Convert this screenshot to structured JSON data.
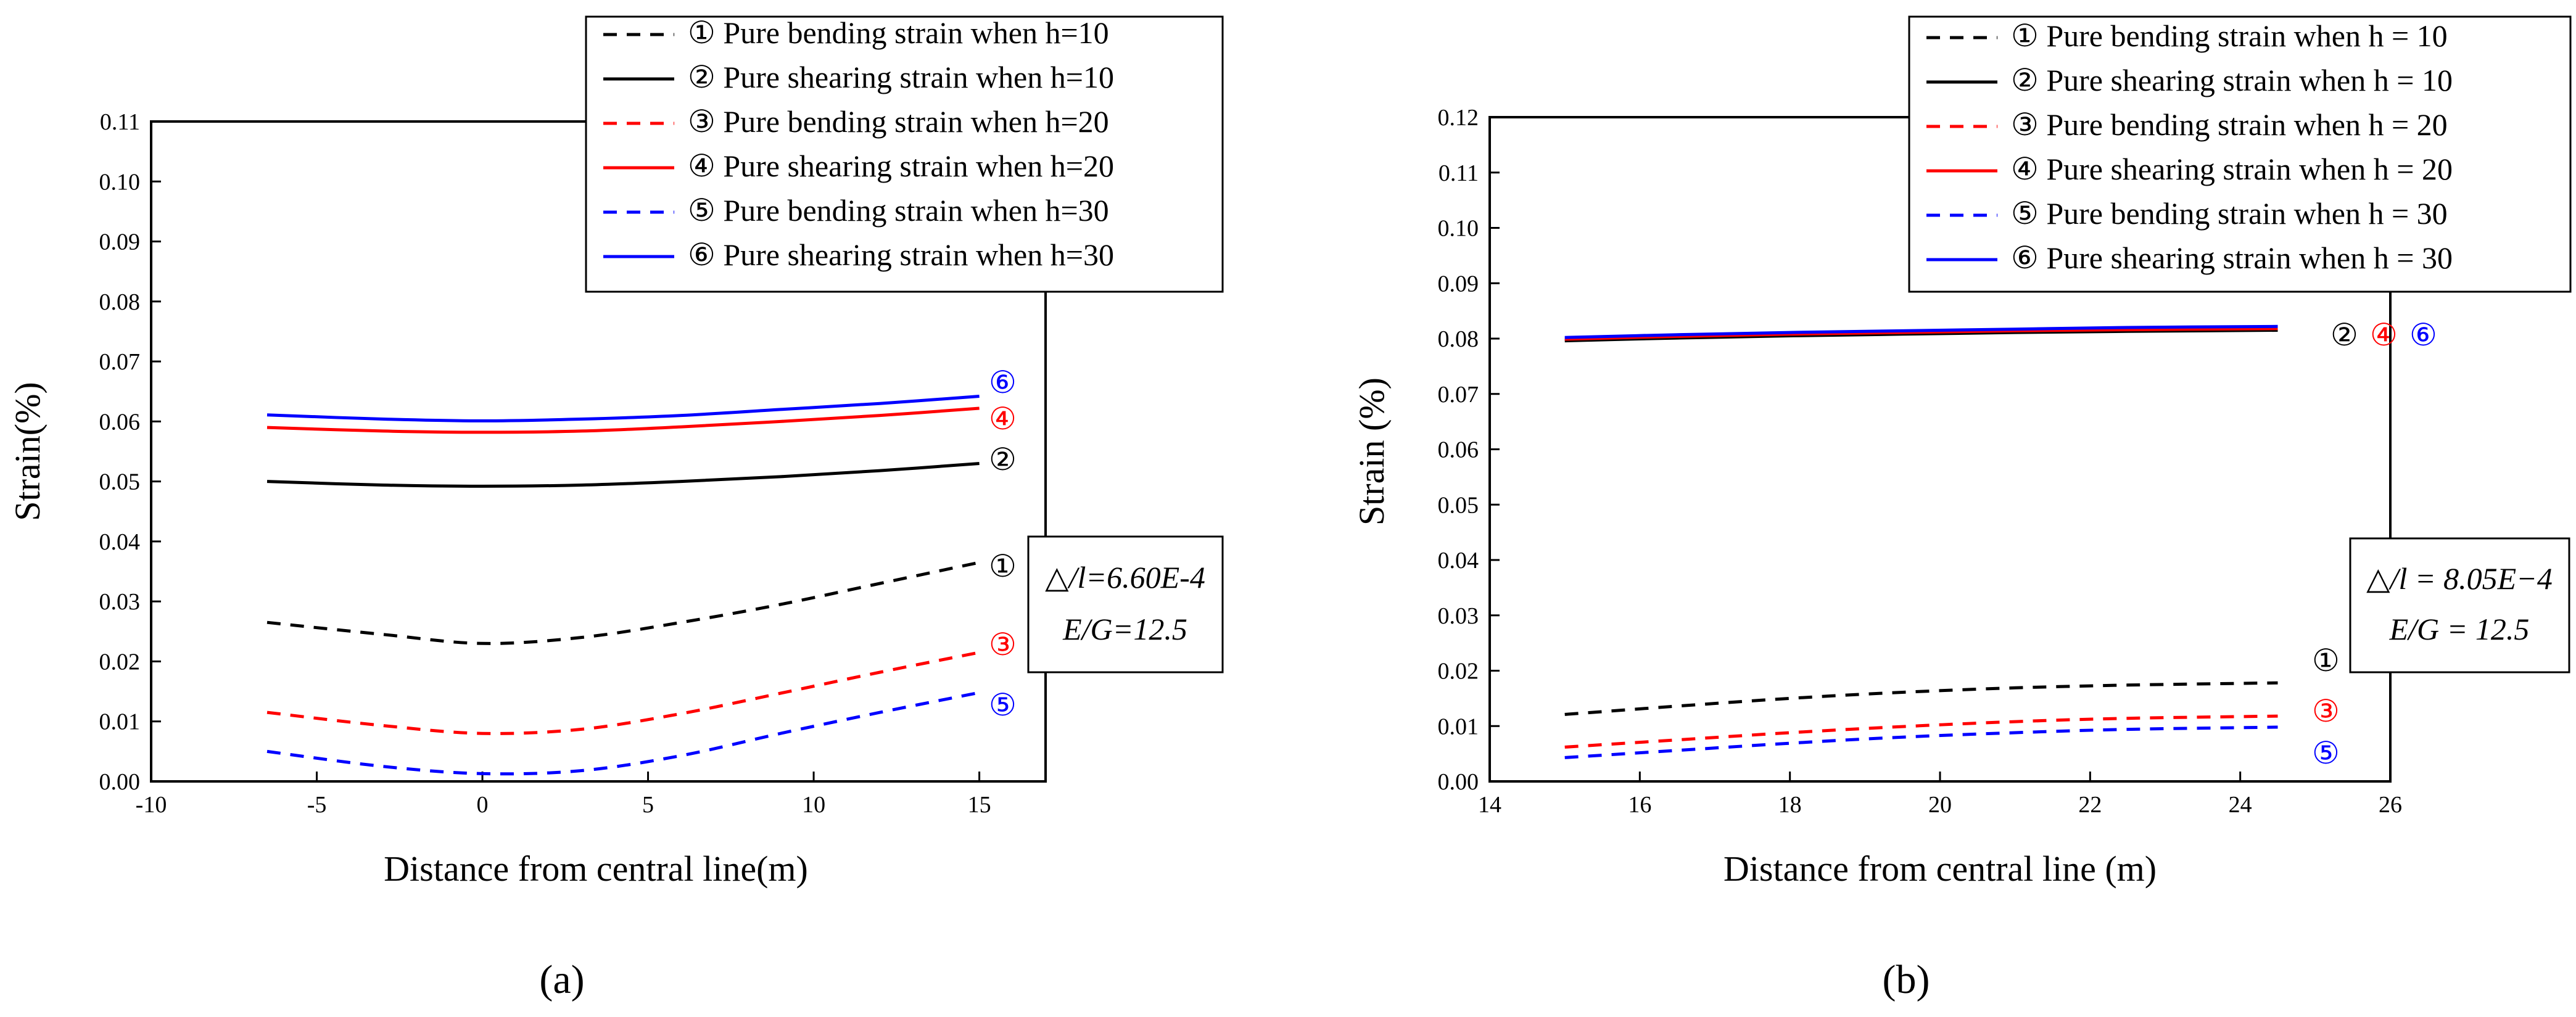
{
  "chart_data": [
    {
      "type": "line",
      "panel_label": "(a)",
      "xlabel": "Distance from central line(m)",
      "ylabel": "Strain(%)",
      "xlim": [
        -10,
        17
      ],
      "ylim": [
        0,
        0.11
      ],
      "xticks": [
        -10,
        -5,
        0,
        5,
        10,
        15
      ],
      "xtick_labels": [
        "-10",
        "-5",
        "0",
        "5",
        "10",
        "15"
      ],
      "yticks": [
        0,
        0.01,
        0.02,
        0.03,
        0.04,
        0.05,
        0.06,
        0.07,
        0.08,
        0.09,
        0.1,
        0.11
      ],
      "ytick_labels": [
        "0.00",
        "0.01",
        "0.02",
        "0.03",
        "0.04",
        "0.05",
        "0.06",
        "0.07",
        "0.08",
        "0.09",
        "0.10",
        "0.11"
      ],
      "legend_position": "top-right",
      "annotation": {
        "line1": "△/l=6.60E-4",
        "line2": "E/G=12.5"
      },
      "series": [
        {
          "marker": "①",
          "name": "① Pure bending strain when h=10",
          "color": "#000000",
          "dash": true,
          "x": [
            -6.5,
            -3,
            0,
            3,
            6,
            9,
            12,
            15
          ],
          "y": [
            0.0265,
            0.0245,
            0.023,
            0.024,
            0.0265,
            0.0295,
            0.033,
            0.0365
          ]
        },
        {
          "marker": "②",
          "name": "② Pure shearing strain when h=10",
          "color": "#000000",
          "dash": false,
          "x": [
            -6.5,
            -3,
            0,
            3,
            6,
            9,
            12,
            15
          ],
          "y": [
            0.05,
            0.0494,
            0.0492,
            0.0494,
            0.05,
            0.0508,
            0.0518,
            0.053
          ]
        },
        {
          "marker": "③",
          "name": "③ Pure bending strain when h=20",
          "color": "#ff0000",
          "dash": true,
          "x": [
            -6.5,
            -3,
            0,
            3,
            6,
            9,
            12,
            15
          ],
          "y": [
            0.0115,
            0.0093,
            0.008,
            0.0087,
            0.0113,
            0.0147,
            0.0182,
            0.0215
          ]
        },
        {
          "marker": "④",
          "name": "④ Pure shearing strain when h=20",
          "color": "#ff0000",
          "dash": false,
          "x": [
            -6.5,
            -3,
            0,
            3,
            6,
            9,
            12,
            15
          ],
          "y": [
            0.059,
            0.0584,
            0.0582,
            0.0584,
            0.0591,
            0.06,
            0.061,
            0.0622
          ]
        },
        {
          "marker": "⑤",
          "name": "⑤ Pure bending strain when h=30",
          "color": "#0000ff",
          "dash": true,
          "x": [
            -6.5,
            -3,
            0,
            3,
            6,
            9,
            12,
            15
          ],
          "y": [
            0.005,
            0.0025,
            0.0013,
            0.0018,
            0.0043,
            0.008,
            0.0115,
            0.0148
          ]
        },
        {
          "marker": "⑥",
          "name": "⑥ Pure shearing strain when h=30",
          "color": "#0000ff",
          "dash": false,
          "x": [
            -6.5,
            -3,
            0,
            3,
            6,
            9,
            12,
            15
          ],
          "y": [
            0.0611,
            0.0604,
            0.0601,
            0.0604,
            0.061,
            0.062,
            0.063,
            0.0642
          ]
        }
      ]
    },
    {
      "type": "line",
      "panel_label": "(b)",
      "xlabel": "Distance from central line (m)",
      "ylabel": "Strain (%)",
      "xlim": [
        14,
        26
      ],
      "ylim": [
        0,
        0.12
      ],
      "xticks": [
        14,
        16,
        18,
        20,
        22,
        24,
        26
      ],
      "xtick_labels": [
        "14",
        "16",
        "18",
        "20",
        "22",
        "24",
        "26"
      ],
      "yticks": [
        0,
        0.01,
        0.02,
        0.03,
        0.04,
        0.05,
        0.06,
        0.07,
        0.08,
        0.09,
        0.1,
        0.11,
        0.12
      ],
      "ytick_labels": [
        "0.00",
        "0.01",
        "0.02",
        "0.03",
        "0.04",
        "0.05",
        "0.06",
        "0.07",
        "0.08",
        "0.09",
        "0.10",
        "0.11",
        "0.12"
      ],
      "legend_position": "top-right",
      "annotation": {
        "line1": "△/l = 8.05E−4",
        "line2": "E/G = 12.5"
      },
      "series": [
        {
          "marker": "①",
          "name": "① Pure bending strain when h = 10",
          "color": "#000000",
          "dash": true,
          "x": [
            15,
            16.5,
            18,
            19.5,
            21,
            22.5,
            24.5
          ],
          "y": [
            0.0121,
            0.0136,
            0.015,
            0.0161,
            0.0169,
            0.0174,
            0.0178
          ]
        },
        {
          "marker": "②",
          "name": "② Pure shearing strain when h = 10",
          "color": "#000000",
          "dash": false,
          "x": [
            15,
            16.5,
            18,
            19.5,
            21,
            22.5,
            24.5
          ],
          "y": [
            0.0796,
            0.0801,
            0.0805,
            0.0808,
            0.0811,
            0.0813,
            0.0815
          ]
        },
        {
          "marker": "③",
          "name": "③ Pure bending strain when h = 20",
          "color": "#ff0000",
          "dash": true,
          "x": [
            15,
            16.5,
            18,
            19.5,
            21,
            22.5,
            24.5
          ],
          "y": [
            0.0062,
            0.0075,
            0.0088,
            0.0099,
            0.0108,
            0.0114,
            0.0118
          ]
        },
        {
          "marker": "④",
          "name": "④ Pure shearing strain when h = 20",
          "color": "#ff0000",
          "dash": false,
          "x": [
            15,
            16.5,
            18,
            19.5,
            21,
            22.5,
            24.5
          ],
          "y": [
            0.0799,
            0.0804,
            0.0808,
            0.0811,
            0.0814,
            0.0816,
            0.0818
          ]
        },
        {
          "marker": "⑤",
          "name": "⑤ Pure bending strain when h = 30",
          "color": "#0000ff",
          "dash": true,
          "x": [
            15,
            16.5,
            18,
            19.5,
            21,
            22.5,
            24.5
          ],
          "y": [
            0.0043,
            0.0056,
            0.0069,
            0.008,
            0.0088,
            0.0094,
            0.0098
          ]
        },
        {
          "marker": "⑥",
          "name": "⑥ Pure shearing strain when h = 30",
          "color": "#0000ff",
          "dash": false,
          "x": [
            15,
            16.5,
            18,
            19.5,
            21,
            22.5,
            24.5
          ],
          "y": [
            0.0802,
            0.0807,
            0.0811,
            0.0814,
            0.0817,
            0.082,
            0.0822
          ]
        }
      ]
    }
  ]
}
